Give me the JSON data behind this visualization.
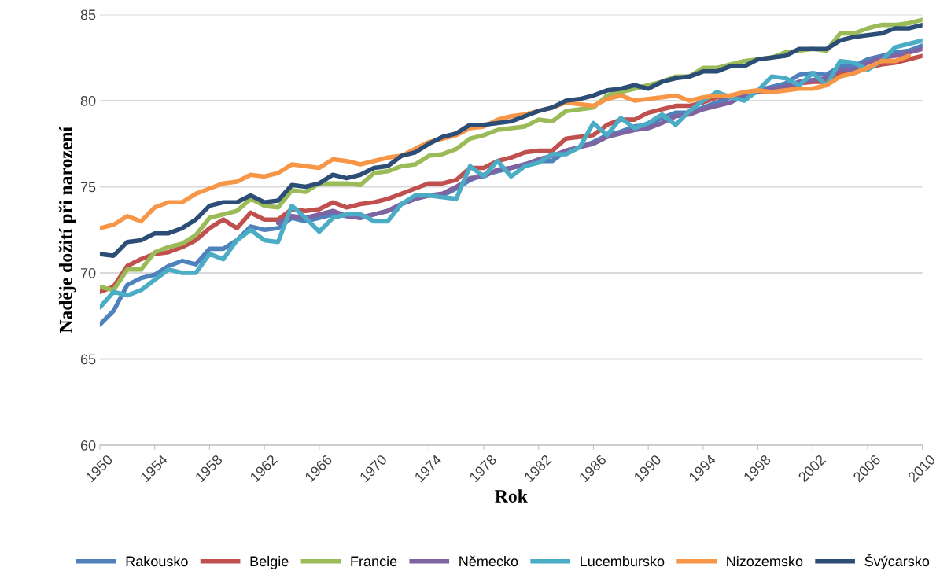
{
  "chart_data": {
    "type": "line",
    "xlabel": "Rok",
    "ylabel": "Naděje dožití při narození",
    "x": [
      1950,
      1951,
      1952,
      1953,
      1954,
      1955,
      1956,
      1957,
      1958,
      1959,
      1960,
      1961,
      1962,
      1963,
      1964,
      1965,
      1966,
      1967,
      1968,
      1969,
      1970,
      1971,
      1972,
      1973,
      1974,
      1975,
      1976,
      1977,
      1978,
      1979,
      1980,
      1981,
      1982,
      1983,
      1984,
      1985,
      1986,
      1987,
      1988,
      1989,
      1990,
      1991,
      1992,
      1993,
      1994,
      1995,
      1996,
      1997,
      1998,
      1999,
      2000,
      2001,
      2002,
      2003,
      2004,
      2005,
      2006,
      2007,
      2008,
      2009,
      2010
    ],
    "xlim": [
      1950,
      2010
    ],
    "xticks": [
      1950,
      1954,
      1958,
      1962,
      1966,
      1970,
      1974,
      1978,
      1982,
      1986,
      1990,
      1994,
      1998,
      2002,
      2006,
      2010
    ],
    "ylim": [
      60,
      85
    ],
    "yticks": [
      60,
      65,
      70,
      75,
      80,
      85
    ],
    "grid": "y",
    "legend": "bottom",
    "marker": "none",
    "line_style": "solid",
    "series": [
      {
        "name": "Rakousko",
        "color": "#4f81bd",
        "values": [
          67.0,
          67.8,
          69.3,
          69.7,
          69.9,
          70.4,
          70.7,
          70.5,
          71.4,
          71.4,
          71.9,
          72.7,
          72.5,
          72.6,
          73.2,
          73.0,
          73.2,
          73.4,
          73.3,
          73.2,
          73.4,
          73.6,
          74.0,
          74.3,
          74.5,
          74.5,
          74.9,
          75.4,
          75.7,
          75.9,
          76.1,
          76.3,
          76.5,
          76.5,
          77.1,
          77.3,
          77.6,
          78.0,
          78.2,
          78.5,
          78.6,
          79.0,
          79.3,
          79.3,
          79.6,
          79.9,
          80.2,
          80.4,
          80.6,
          80.8,
          81.0,
          81.5,
          81.6,
          81.5,
          82.0,
          82.0,
          82.4,
          82.6,
          82.8,
          82.9,
          83.2
        ]
      },
      {
        "name": "Belgie",
        "color": "#c0504d",
        "values": [
          68.9,
          69.2,
          70.4,
          70.8,
          71.1,
          71.2,
          71.5,
          71.9,
          72.6,
          73.1,
          72.6,
          73.5,
          73.1,
          73.1,
          73.7,
          73.6,
          73.7,
          74.1,
          73.8,
          74.0,
          74.1,
          74.3,
          74.6,
          74.9,
          75.2,
          75.2,
          75.4,
          76.1,
          76.1,
          76.5,
          76.7,
          77.0,
          77.1,
          77.1,
          77.8,
          77.9,
          78.0,
          78.6,
          78.9,
          78.9,
          79.3,
          79.5,
          79.7,
          79.7,
          79.9,
          80.2,
          80.3,
          80.4,
          80.5,
          80.6,
          80.8,
          81.0,
          81.1,
          81.1,
          81.6,
          81.6,
          81.9,
          82.1,
          82.2,
          82.4,
          82.6
        ]
      },
      {
        "name": "Francie",
        "color": "#9bbb59",
        "values": [
          69.2,
          69.0,
          70.2,
          70.2,
          71.2,
          71.5,
          71.7,
          72.2,
          73.2,
          73.4,
          73.6,
          74.3,
          73.9,
          73.8,
          74.8,
          74.7,
          75.2,
          75.2,
          75.2,
          75.1,
          75.8,
          75.9,
          76.2,
          76.3,
          76.8,
          76.9,
          77.2,
          77.8,
          78.0,
          78.3,
          78.4,
          78.5,
          78.9,
          78.8,
          79.4,
          79.5,
          79.6,
          80.3,
          80.5,
          80.7,
          80.9,
          81.1,
          81.4,
          81.4,
          81.9,
          81.9,
          82.1,
          82.3,
          82.4,
          82.5,
          82.8,
          82.9,
          83.0,
          82.9,
          83.9,
          83.9,
          84.2,
          84.4,
          84.4,
          84.5,
          84.7
        ]
      },
      {
        "name": "Německo",
        "color": "#8064a2",
        "values": [
          null,
          null,
          null,
          null,
          null,
          null,
          null,
          null,
          null,
          null,
          null,
          null,
          null,
          72.9,
          73.3,
          73.2,
          73.4,
          73.6,
          73.3,
          73.2,
          73.4,
          73.6,
          74.0,
          74.3,
          74.5,
          74.6,
          75.0,
          75.5,
          75.6,
          76.0,
          76.1,
          76.3,
          76.6,
          76.8,
          77.1,
          77.3,
          77.5,
          77.9,
          78.1,
          78.3,
          78.4,
          78.7,
          79.1,
          79.2,
          79.5,
          79.7,
          79.9,
          80.3,
          80.5,
          80.7,
          80.8,
          81.1,
          81.2,
          81.3,
          81.8,
          81.8,
          82.2,
          82.5,
          82.6,
          82.8,
          83.0
        ]
      },
      {
        "name": "Lucembursko",
        "color": "#4bacc6",
        "values": [
          68.0,
          68.9,
          68.7,
          69.0,
          69.6,
          70.2,
          70.0,
          70.0,
          71.1,
          70.8,
          71.9,
          72.5,
          71.9,
          71.8,
          73.9,
          73.2,
          72.4,
          73.2,
          73.4,
          73.4,
          73.0,
          73.0,
          74.0,
          74.5,
          74.5,
          74.4,
          74.3,
          76.2,
          75.6,
          76.5,
          75.6,
          76.2,
          76.4,
          76.9,
          76.9,
          77.3,
          78.7,
          78.0,
          79.0,
          78.4,
          78.7,
          79.2,
          78.6,
          79.4,
          80.0,
          80.5,
          80.2,
          80.0,
          80.6,
          81.4,
          81.3,
          80.9,
          81.6,
          80.9,
          82.3,
          82.2,
          81.8,
          82.3,
          83.1,
          83.3,
          83.5
        ]
      },
      {
        "name": "Nizozemsko",
        "color": "#f79646",
        "values": [
          72.6,
          72.8,
          73.3,
          73.0,
          73.8,
          74.1,
          74.1,
          74.6,
          74.9,
          75.2,
          75.3,
          75.7,
          75.6,
          75.8,
          76.3,
          76.2,
          76.1,
          76.6,
          76.5,
          76.3,
          76.5,
          76.7,
          76.8,
          77.2,
          77.6,
          77.8,
          78.0,
          78.4,
          78.5,
          78.9,
          79.1,
          79.2,
          79.4,
          79.6,
          79.9,
          79.8,
          79.7,
          80.1,
          80.3,
          80.0,
          80.1,
          80.2,
          80.3,
          80.0,
          80.2,
          80.3,
          80.3,
          80.5,
          80.6,
          80.5,
          80.6,
          80.7,
          80.7,
          80.9,
          81.4,
          81.6,
          81.9,
          82.3,
          82.3,
          82.6,
          null
        ]
      },
      {
        "name": "Švýcarsko",
        "color": "#2c4d75",
        "values": [
          71.1,
          71.0,
          71.8,
          71.9,
          72.3,
          72.3,
          72.6,
          73.1,
          73.9,
          74.1,
          74.1,
          74.5,
          74.1,
          74.2,
          75.1,
          75.0,
          75.2,
          75.7,
          75.5,
          75.7,
          76.1,
          76.2,
          76.8,
          77.0,
          77.5,
          77.9,
          78.1,
          78.6,
          78.6,
          78.7,
          78.8,
          79.1,
          79.4,
          79.6,
          80.0,
          80.1,
          80.3,
          80.6,
          80.7,
          80.9,
          80.7,
          81.1,
          81.3,
          81.4,
          81.7,
          81.7,
          82.0,
          82.0,
          82.4,
          82.5,
          82.6,
          83.0,
          83.0,
          83.0,
          83.5,
          83.7,
          83.8,
          83.9,
          84.2,
          84.2,
          84.4
        ]
      }
    ]
  }
}
